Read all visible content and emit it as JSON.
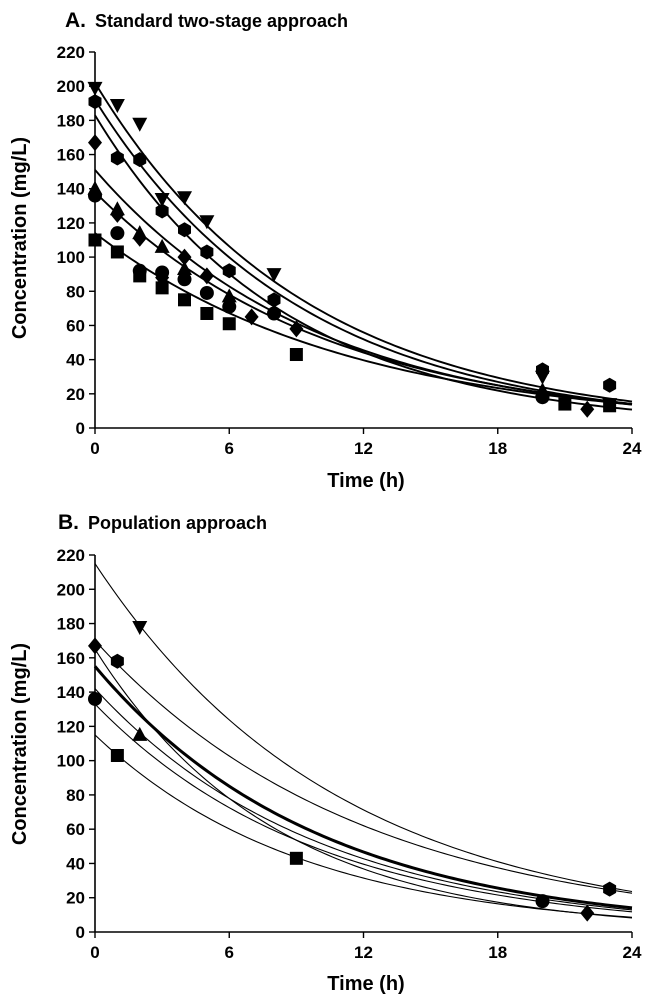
{
  "chart_data": [
    {
      "type": "scatter",
      "panel_letter": "A.",
      "title": "Standard two-stage approach",
      "xlabel": "Time (h)",
      "ylabel": "Concentration (mg/L)",
      "xlim": [
        0,
        24
      ],
      "ylim": [
        0,
        220
      ],
      "xticks": [
        "0",
        "6",
        "12",
        "18",
        "24"
      ],
      "yticks": [
        "0",
        "20",
        "40",
        "60",
        "80",
        "100",
        "120",
        "140",
        "160",
        "180",
        "200",
        "220"
      ],
      "grid": false,
      "legend": "none",
      "series": [
        {
          "marker": "triangle-down",
          "points": [
            [
              0,
              199
            ],
            [
              1,
              189
            ],
            [
              2,
              178
            ],
            [
              3,
              134
            ],
            [
              4,
              135
            ],
            [
              5,
              121
            ],
            [
              8,
              90
            ],
            [
              20,
              30
            ],
            [
              23,
              14
            ]
          ],
          "fit": {
            "c0": 202,
            "k": 0.107
          }
        },
        {
          "marker": "hexagon",
          "points": [
            [
              0,
              191
            ],
            [
              1,
              158
            ],
            [
              2,
              157
            ],
            [
              3,
              127
            ],
            [
              4,
              116
            ],
            [
              5,
              103
            ],
            [
              6,
              92
            ],
            [
              8,
              75
            ],
            [
              20,
              34
            ],
            [
              23,
              25
            ]
          ],
          "fit": {
            "c0": 192,
            "k": 0.109
          }
        },
        {
          "marker": "diamond",
          "points": [
            [
              0,
              167
            ],
            [
              1,
              125
            ],
            [
              2,
              111
            ],
            [
              3,
              88
            ],
            [
              4,
              100
            ],
            [
              5,
              89
            ],
            [
              7,
              65
            ],
            [
              9,
              58
            ],
            [
              22,
              11
            ]
          ],
          "fit": {
            "c0": 183,
            "k": 0.118
          }
        },
        {
          "marker": "triangle-up",
          "points": [
            [
              0,
              140
            ],
            [
              1,
              128
            ],
            [
              2,
              114
            ],
            [
              3,
              106
            ],
            [
              4,
              93
            ],
            [
              6,
              77
            ],
            [
              20,
              22
            ]
          ],
          "fit": {
            "c0": 151,
            "k": 0.1
          }
        },
        {
          "marker": "circle",
          "points": [
            [
              0,
              136
            ],
            [
              1,
              114
            ],
            [
              2,
              92
            ],
            [
              3,
              91
            ],
            [
              4,
              87
            ],
            [
              5,
              79
            ],
            [
              6,
              71
            ],
            [
              8,
              67
            ],
            [
              20,
              18
            ]
          ],
          "fit": {
            "c0": 138,
            "k": 0.095
          }
        },
        {
          "marker": "square",
          "points": [
            [
              0,
              110
            ],
            [
              1,
              103
            ],
            [
              2,
              89
            ],
            [
              3,
              82
            ],
            [
              4,
              75
            ],
            [
              5,
              67
            ],
            [
              6,
              61
            ],
            [
              9,
              43
            ],
            [
              21,
              14
            ],
            [
              23,
              13
            ]
          ],
          "fit": {
            "c0": 114,
            "k": 0.088
          }
        }
      ]
    },
    {
      "type": "scatter",
      "panel_letter": "B.",
      "title": "Population approach",
      "xlabel": "Time (h)",
      "ylabel": "Concentration (mg/L)",
      "xlim": [
        0,
        24
      ],
      "ylim": [
        0,
        220
      ],
      "xticks": [
        "0",
        "6",
        "12",
        "18",
        "24"
      ],
      "yticks": [
        "0",
        "20",
        "40",
        "60",
        "80",
        "100",
        "120",
        "140",
        "160",
        "180",
        "200",
        "220"
      ],
      "grid": false,
      "legend": "none",
      "series": [
        {
          "marker": "triangle-down",
          "points": [
            [
              2,
              178
            ]
          ],
          "fit": {
            "c0": 215,
            "k": 0.092
          }
        },
        {
          "marker": "hexagon",
          "points": [
            [
              1,
              158
            ],
            [
              23,
              25
            ]
          ],
          "fit": {
            "c0": 170,
            "k": 0.084
          }
        },
        {
          "marker": "diamond",
          "points": [
            [
              0,
              167
            ],
            [
              22,
              11
            ]
          ],
          "fit": {
            "c0": 165,
            "k": 0.125
          }
        },
        {
          "marker": "triangle-up",
          "points": [
            [
              2,
              115
            ]
          ],
          "fit": {
            "c0": 142,
            "k": 0.1
          }
        },
        {
          "marker": "circle",
          "points": [
            [
              0,
              136
            ],
            [
              20,
              18
            ]
          ],
          "fit": {
            "c0": 133,
            "k": 0.101
          }
        },
        {
          "marker": "square",
          "points": [
            [
              1,
              103
            ],
            [
              9,
              43
            ]
          ],
          "fit": {
            "c0": 115,
            "k": 0.108
          }
        }
      ],
      "population_fit": {
        "c0": 155,
        "k": 0.1
      }
    }
  ]
}
